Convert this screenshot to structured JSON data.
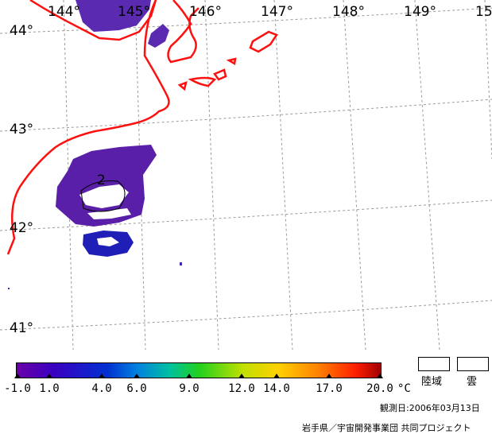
{
  "map": {
    "lon_labels": [
      "144°",
      "145°",
      "146°",
      "147°",
      "148°",
      "149°",
      "15"
    ],
    "lat_labels": [
      "44°",
      "43°",
      "42°",
      "41°"
    ],
    "contour_label": "2",
    "colors": {
      "coast": "#ff1010",
      "grid": "#9a9a9a",
      "sst_purple": "#5a1fa8",
      "sst_blue": "#1f1fb8",
      "cloud": "#ffffff"
    }
  },
  "legend": {
    "ticks": [
      "-1.0",
      "1.0",
      "4.0",
      "6.0",
      "9.0",
      "12.0",
      "14.0",
      "17.0",
      "20.0"
    ],
    "unit": "°C",
    "land_label": "陸域",
    "cloud_label": "雲"
  },
  "footer": {
    "observation_date": "観測日:2006年03月13日",
    "credit": "岩手県／宇宙開発事業団 共同プロジェクト"
  }
}
